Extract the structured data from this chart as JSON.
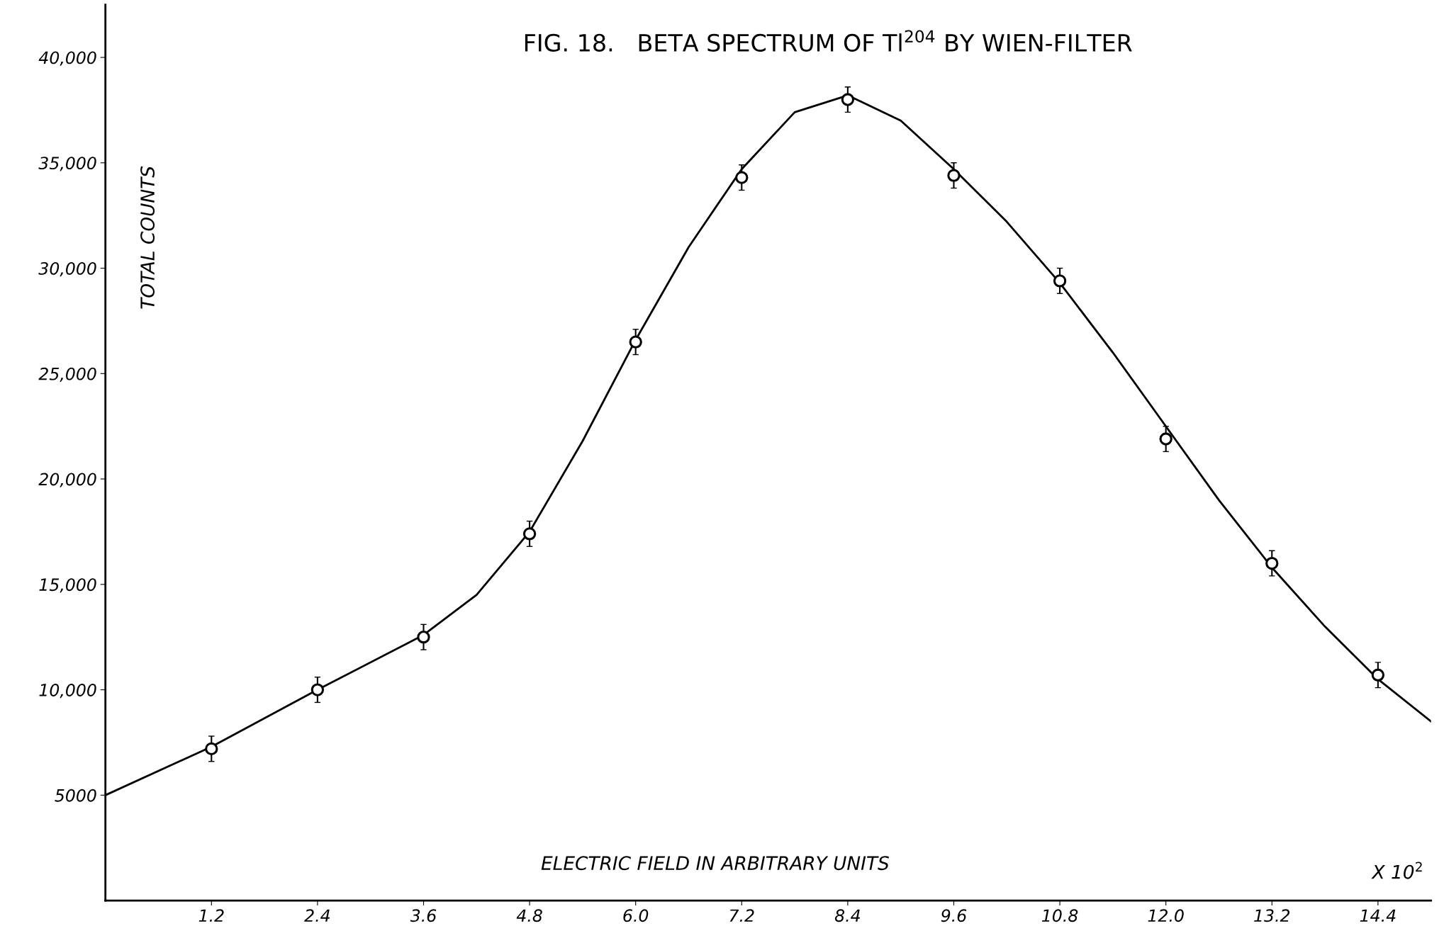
{
  "chart_data": {
    "type": "scatter",
    "title": "FIG. 18.   BETA SPECTRUM OF Tl$^{204}$ BY WIEN-FILTER",
    "xlabel": "ELECTRIC FIELD IN ARBITRARY UNITS",
    "ylabel": "TOTAL COUNTS",
    "annotations": [
      "X 10$^{2}$"
    ],
    "xlim": [
      0,
      15.0
    ],
    "ylim": [
      0,
      42500
    ],
    "xticks": [
      {
        "value": 1.2,
        "label": "1.2"
      },
      {
        "value": 2.4,
        "label": "2.4"
      },
      {
        "value": 3.6,
        "label": "3.6"
      },
      {
        "value": 4.8,
        "label": "4.8"
      },
      {
        "value": 6.0,
        "label": "6.0"
      },
      {
        "value": 7.2,
        "label": "7.2"
      },
      {
        "value": 8.4,
        "label": "8.4"
      },
      {
        "value": 9.6,
        "label": "9.6"
      },
      {
        "value": 10.8,
        "label": "10.8"
      },
      {
        "value": 12.0,
        "label": "12.0"
      },
      {
        "value": 13.2,
        "label": "13.2"
      },
      {
        "value": 14.4,
        "label": "14.4"
      }
    ],
    "yticks": [
      5000,
      {
        "value": 10000,
        "label": "10,000"
      },
      {
        "value": 15000,
        "label": "15,000"
      },
      {
        "value": 20000,
        "label": "20,000"
      },
      {
        "value": 25000,
        "label": "25,000"
      },
      {
        "value": 30000,
        "label": "30,000"
      },
      {
        "value": 35000,
        "label": "35,000"
      },
      {
        "value": 40000,
        "label": "40,000"
      }
    ],
    "grid": false,
    "legend": false,
    "series": [
      {
        "color": "#000000",
        "marker": "circle",
        "x": [
          1.2,
          2.4,
          3.6,
          4.8,
          6.0,
          7.2,
          8.4,
          9.6,
          10.8,
          12.0,
          13.2,
          14.4
        ],
        "values": [
          7200,
          10000,
          12500,
          17400,
          26500,
          34300,
          38000,
          34400,
          29400,
          21900,
          16000,
          10700
        ],
        "errors": [
          600,
          600,
          600,
          600,
          600,
          600,
          600,
          600,
          600,
          600,
          600,
          600
        ]
      },
      {
        "type": "line",
        "color": "#000000",
        "line_style": "solid",
        "x": [
          0,
          1.2,
          2.4,
          3.6,
          4.2,
          4.8,
          5.4,
          6.0,
          6.6,
          7.2,
          7.8,
          8.4,
          9.0,
          9.6,
          10.2,
          10.8,
          11.4,
          12.0,
          12.6,
          13.2,
          13.8,
          14.4,
          15.0
        ],
        "values": [
          5000,
          7300,
          10000,
          12600,
          14500,
          17500,
          21800,
          26600,
          31000,
          34700,
          37400,
          38200,
          37000,
          34700,
          32200,
          29300,
          26000,
          22500,
          19000,
          15800,
          13000,
          10500,
          8500
        ]
      }
    ]
  }
}
